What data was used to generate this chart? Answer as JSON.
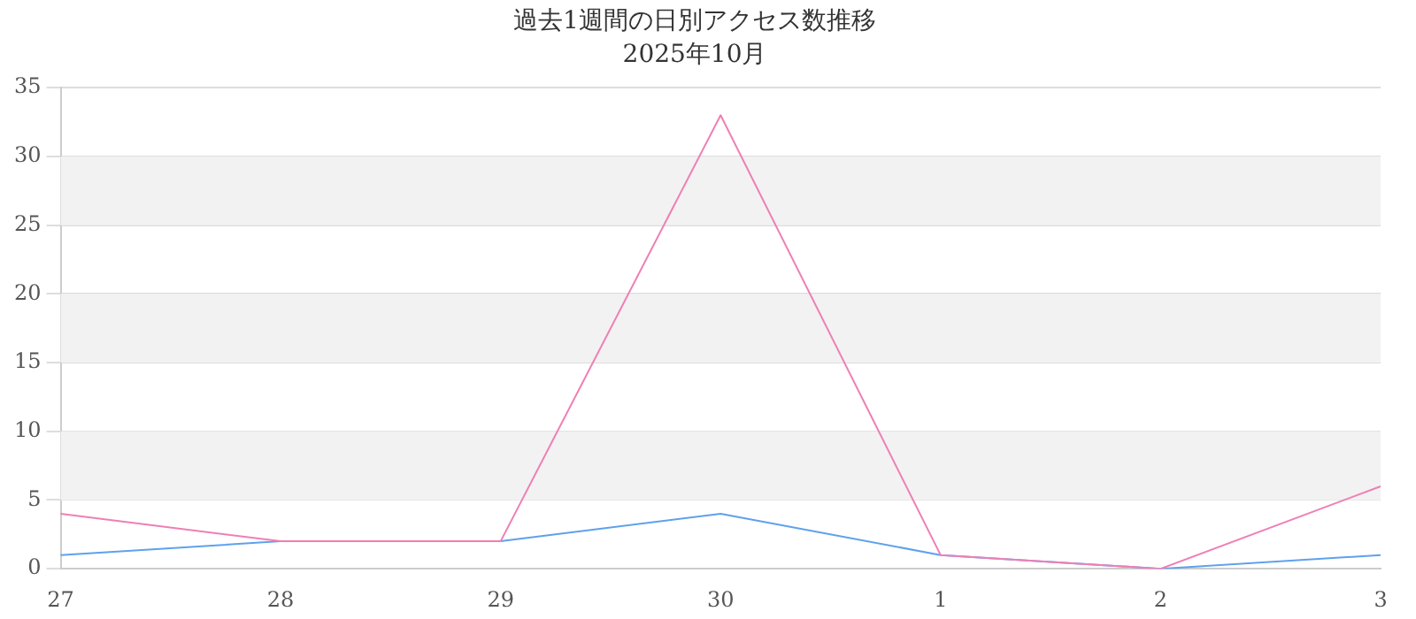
{
  "chart_data": {
    "type": "line",
    "title": "過去1週間の日別アクセス数推移",
    "subtitle": "2025年10月",
    "categories": [
      "27",
      "28",
      "29",
      "30",
      "1",
      "2",
      "3"
    ],
    "series": [
      {
        "color": "#ef7fb5",
        "values": [
          4,
          2,
          2,
          33,
          1,
          0,
          6
        ]
      },
      {
        "color": "#5ea1ec",
        "values": [
          1,
          2,
          2,
          4,
          1,
          0,
          1
        ]
      }
    ],
    "ylim": [
      0,
      35
    ],
    "yticks": [
      0,
      5,
      10,
      15,
      20,
      25,
      30,
      35
    ],
    "grid": "y",
    "legend": false,
    "marker": "none",
    "line_style": "solid",
    "bands": [
      {
        "axis": "y",
        "from": 5,
        "to": 10,
        "color": "#f2f2f2"
      },
      {
        "axis": "y",
        "from": 15,
        "to": 20,
        "color": "#f2f2f2"
      },
      {
        "axis": "y",
        "from": 25,
        "to": 30,
        "color": "#f2f2f2"
      }
    ]
  }
}
